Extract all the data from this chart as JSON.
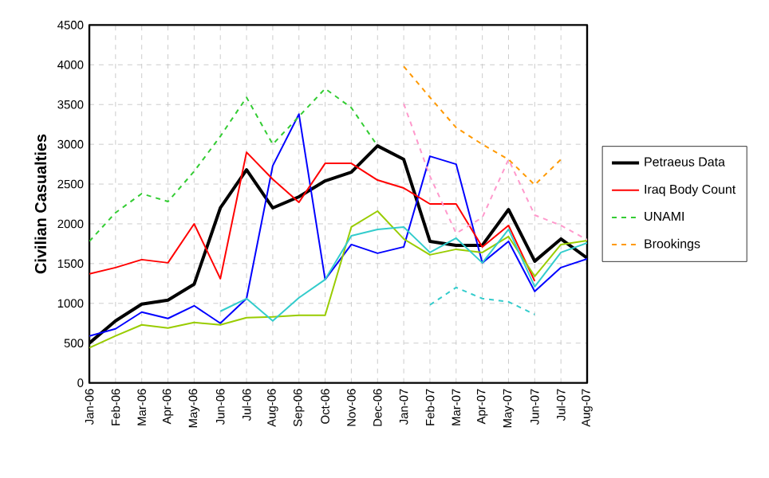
{
  "chart_data": {
    "type": "line",
    "ylabel": "Civilian Casualties",
    "categories": [
      "Jan-06",
      "Feb-06",
      "Mar-06",
      "Apr-06",
      "May-06",
      "Jun-06",
      "Jul-06",
      "Aug-06",
      "Sep-06",
      "Oct-06",
      "Nov-06",
      "Dec-06",
      "Jan-07",
      "Feb-07",
      "Mar-07",
      "Apr-07",
      "May-07",
      "Jun-07",
      "Jul-07",
      "Aug-07"
    ],
    "series": [
      {
        "name": "Petraeus Data",
        "color": "#000000",
        "line_style": "solid",
        "values": [
          500,
          780,
          990,
          1040,
          1240,
          2200,
          2680,
          2200,
          2340,
          2540,
          2650,
          2980,
          2810,
          1780,
          1730,
          1730,
          2180,
          1530,
          1810,
          1570
        ]
      },
      {
        "color": "#0000ff",
        "line_style": "solid",
        "values": [
          590,
          680,
          890,
          810,
          970,
          750,
          1060,
          2730,
          3380,
          1300,
          1740,
          1630,
          1710,
          2850,
          2750,
          1510,
          1780,
          1150,
          1450,
          1560
        ]
      },
      {
        "name": "Iraq Body Count",
        "color": "#ff0000",
        "line_style": "solid",
        "values": [
          1370,
          1450,
          1550,
          1510,
          2000,
          1310,
          2900,
          2560,
          2270,
          2760,
          2760,
          2550,
          2450,
          2250,
          2250,
          1710,
          1980,
          1280,
          null,
          null
        ]
      },
      {
        "color": "#99cc00",
        "line_style": "solid",
        "values": [
          440,
          590,
          730,
          690,
          760,
          730,
          820,
          830,
          850,
          850,
          1960,
          2160,
          1810,
          1610,
          1680,
          1640,
          1840,
          1340,
          1740,
          1790
        ]
      },
      {
        "color": "#33cccc",
        "line_style": "solid",
        "values": [
          null,
          null,
          null,
          null,
          null,
          900,
          1060,
          780,
          1070,
          1300,
          1850,
          1930,
          1960,
          1640,
          1820,
          1510,
          1930,
          1210,
          1640,
          1760
        ]
      },
      {
        "name": "UNAMI",
        "color": "#33cc33",
        "line_style": "dashed",
        "values": [
          1780,
          2140,
          2380,
          2280,
          2660,
          3100,
          3590,
          3000,
          3350,
          3700,
          3460,
          2980,
          null,
          null,
          null,
          null,
          null,
          null,
          null,
          null
        ]
      },
      {
        "name": "Brookings",
        "color": "#ff9900",
        "line_style": "dashed",
        "values": [
          null,
          null,
          null,
          null,
          null,
          null,
          null,
          null,
          null,
          null,
          null,
          null,
          3980,
          3590,
          3210,
          3000,
          2810,
          2490,
          2810,
          null
        ]
      },
      {
        "color": "#ff99cc",
        "line_style": "dashed",
        "values": [
          null,
          null,
          null,
          null,
          null,
          null,
          null,
          null,
          null,
          null,
          null,
          null,
          3510,
          2600,
          1880,
          2080,
          2810,
          2110,
          1980,
          1800
        ]
      },
      {
        "color": "#33cccc",
        "line_style": "dashed",
        "values": [
          null,
          null,
          null,
          null,
          null,
          null,
          null,
          null,
          null,
          null,
          null,
          null,
          null,
          980,
          1200,
          1060,
          1020,
          860,
          null,
          null
        ]
      }
    ],
    "ylim": [
      0,
      4500
    ],
    "yticks": [
      0,
      500,
      1000,
      1500,
      2000,
      2500,
      3000,
      3500,
      4000,
      4500
    ],
    "grid": true,
    "legend": "right"
  }
}
